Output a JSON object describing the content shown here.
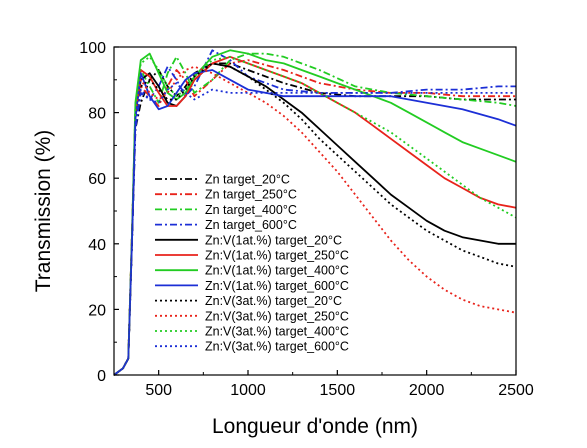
{
  "chart_data": {
    "type": "line",
    "title": "",
    "xlabel": "Longueur d'onde (nm)",
    "ylabel": "Transmission (%)",
    "xlim": [
      250,
      2500
    ],
    "ylim": [
      0,
      100
    ],
    "xticks": [
      500,
      1000,
      1500,
      2000,
      2500
    ],
    "yticks": [
      0,
      20,
      40,
      60,
      80,
      100
    ],
    "xtick_labels": [
      "500",
      "1000",
      "1500",
      "2000",
      "2500"
    ],
    "ytick_labels": [
      "0",
      "20",
      "40",
      "60",
      "80",
      "100"
    ],
    "grid": false,
    "legend_position": "center-left",
    "series": [
      {
        "name": "Zn target_20°C",
        "color": "#000000",
        "style": "dashdot",
        "x": [
          250,
          300,
          330,
          350,
          370,
          400,
          450,
          500,
          550,
          600,
          650,
          700,
          800,
          900,
          1000,
          1200,
          1400,
          1600,
          1800,
          2000,
          2200,
          2400,
          2500
        ],
        "y": [
          0,
          2,
          5,
          40,
          75,
          83,
          90,
          93,
          88,
          85,
          88,
          92,
          95,
          95,
          93,
          89,
          86,
          85,
          85,
          85,
          84,
          84,
          84
        ]
      },
      {
        "name": "Zn target_250°C",
        "color": "#e8231b",
        "style": "dashdot",
        "x": [
          250,
          300,
          330,
          350,
          370,
          400,
          450,
          500,
          550,
          600,
          650,
          700,
          800,
          900,
          1000,
          1200,
          1400,
          1600,
          1800,
          2000,
          2200,
          2400,
          2500
        ],
        "y": [
          0,
          2,
          5,
          42,
          78,
          88,
          85,
          82,
          88,
          93,
          90,
          85,
          90,
          95,
          96,
          93,
          89,
          87,
          86,
          86,
          85,
          85,
          85
        ]
      },
      {
        "name": "Zn target_400°C",
        "color": "#22cc22",
        "style": "dashdot",
        "x": [
          250,
          300,
          330,
          350,
          370,
          400,
          450,
          500,
          550,
          600,
          650,
          700,
          800,
          900,
          1000,
          1100,
          1200,
          1400,
          1600,
          1800,
          2000,
          2200,
          2400,
          2500
        ],
        "y": [
          0,
          2,
          5,
          42,
          80,
          93,
          88,
          83,
          92,
          97,
          92,
          86,
          90,
          96,
          98,
          98,
          97,
          93,
          88,
          86,
          85,
          84,
          83,
          82
        ]
      },
      {
        "name": "Zn target_600°C",
        "color": "#1c2fd6",
        "style": "dashdot",
        "x": [
          250,
          300,
          330,
          350,
          370,
          400,
          450,
          500,
          550,
          600,
          650,
          700,
          800,
          900,
          1000,
          1200,
          1400,
          1600,
          1800,
          2000,
          2200,
          2400,
          2500
        ],
        "y": [
          0,
          2,
          5,
          40,
          75,
          86,
          84,
          88,
          94,
          90,
          85,
          88,
          99,
          96,
          91,
          87,
          86,
          86,
          86,
          87,
          87,
          88,
          88
        ]
      },
      {
        "name": "Zn:V(1at.%) target_20°C",
        "color": "#000000",
        "style": "solid",
        "x": [
          250,
          300,
          330,
          350,
          370,
          400,
          450,
          500,
          550,
          600,
          650,
          700,
          800,
          900,
          1000,
          1100,
          1200,
          1300,
          1400,
          1500,
          1600,
          1700,
          1800,
          1900,
          2000,
          2100,
          2200,
          2300,
          2400,
          2500
        ],
        "y": [
          0,
          2,
          5,
          40,
          80,
          90,
          92,
          88,
          83,
          82,
          85,
          90,
          95,
          94,
          91,
          88,
          84,
          80,
          75,
          70,
          65,
          60,
          55,
          51,
          47,
          44,
          42,
          41,
          40,
          40
        ]
      },
      {
        "name": "Zn:V(1at.%) target_250°C",
        "color": "#e8231b",
        "style": "solid",
        "x": [
          250,
          300,
          330,
          350,
          370,
          400,
          450,
          500,
          550,
          600,
          650,
          700,
          800,
          900,
          1000,
          1100,
          1200,
          1300,
          1400,
          1500,
          1600,
          1700,
          1800,
          1900,
          2000,
          2100,
          2200,
          2300,
          2400,
          2500
        ],
        "y": [
          0,
          2,
          5,
          42,
          80,
          93,
          91,
          86,
          82,
          82,
          85,
          90,
          95,
          97,
          95,
          93,
          91,
          89,
          86,
          83,
          80,
          76,
          72,
          68,
          64,
          60,
          57,
          54,
          52,
          51
        ]
      },
      {
        "name": "Zn:V(1at.%) target_400°C",
        "color": "#22cc22",
        "style": "solid",
        "x": [
          250,
          300,
          330,
          350,
          370,
          400,
          450,
          500,
          550,
          600,
          650,
          700,
          800,
          900,
          1000,
          1100,
          1200,
          1300,
          1400,
          1500,
          1600,
          1700,
          1800,
          1900,
          2000,
          2100,
          2200,
          2300,
          2400,
          2500
        ],
        "y": [
          0,
          2,
          5,
          42,
          83,
          96,
          98,
          92,
          86,
          84,
          86,
          91,
          97,
          99,
          98,
          96,
          95,
          93,
          91,
          89,
          87,
          85,
          83,
          80,
          77,
          74,
          71,
          69,
          67,
          65
        ]
      },
      {
        "name": "Zn:V(1at.%) target_600°C",
        "color": "#1c2fd6",
        "style": "solid",
        "x": [
          250,
          300,
          330,
          350,
          370,
          400,
          450,
          500,
          550,
          600,
          650,
          700,
          800,
          900,
          1000,
          1100,
          1200,
          1400,
          1600,
          1800,
          2000,
          2200,
          2400,
          2500
        ],
        "y": [
          0,
          2,
          5,
          40,
          78,
          92,
          85,
          81,
          82,
          86,
          90,
          92,
          93,
          90,
          87,
          86,
          85,
          85,
          85,
          85,
          83,
          81,
          78,
          76
        ]
      },
      {
        "name": "Zn:V(3at.%) target_20°C",
        "color": "#000000",
        "style": "dotted",
        "x": [
          250,
          300,
          330,
          350,
          370,
          400,
          450,
          500,
          550,
          600,
          650,
          700,
          800,
          900,
          1000,
          1100,
          1200,
          1300,
          1400,
          1500,
          1600,
          1700,
          1800,
          1900,
          2000,
          2100,
          2200,
          2300,
          2400,
          2500
        ],
        "y": [
          0,
          2,
          5,
          40,
          78,
          88,
          90,
          87,
          84,
          84,
          87,
          91,
          95,
          94,
          91,
          87,
          83,
          78,
          72,
          67,
          62,
          57,
          52,
          48,
          44,
          41,
          38,
          36,
          34,
          33
        ]
      },
      {
        "name": "Zn:V(3at.%) target_250°C",
        "color": "#e8231b",
        "style": "dotted",
        "x": [
          250,
          300,
          330,
          350,
          370,
          400,
          450,
          500,
          550,
          600,
          650,
          700,
          800,
          900,
          1000,
          1100,
          1200,
          1300,
          1400,
          1500,
          1600,
          1700,
          1800,
          1900,
          2000,
          2100,
          2200,
          2300,
          2400,
          2500
        ],
        "y": [
          0,
          2,
          5,
          42,
          80,
          90,
          86,
          84,
          86,
          90,
          93,
          94,
          92,
          89,
          86,
          83,
          79,
          74,
          68,
          62,
          55,
          48,
          41,
          35,
          30,
          26,
          23,
          21,
          20,
          19
        ]
      },
      {
        "name": "Zn:V(3at.%) target_400°C",
        "color": "#22cc22",
        "style": "dotted",
        "x": [
          250,
          300,
          330,
          350,
          370,
          400,
          450,
          500,
          550,
          600,
          650,
          700,
          800,
          900,
          1000,
          1100,
          1200,
          1300,
          1400,
          1500,
          1600,
          1700,
          1800,
          1900,
          2000,
          2100,
          2200,
          2300,
          2400,
          2500
        ],
        "y": [
          0,
          2,
          5,
          42,
          82,
          95,
          97,
          93,
          88,
          85,
          87,
          91,
          96,
          97,
          95,
          93,
          91,
          89,
          86,
          83,
          80,
          77,
          74,
          70,
          66,
          62,
          58,
          54,
          51,
          48
        ]
      },
      {
        "name": "Zn:V(3at.%) target_600°C",
        "color": "#1c2fd6",
        "style": "dotted",
        "x": [
          250,
          300,
          330,
          350,
          370,
          400,
          450,
          500,
          550,
          600,
          650,
          700,
          800,
          900,
          1000,
          1200,
          1400,
          1600,
          1800,
          2000,
          2200,
          2400,
          2500
        ],
        "y": [
          0,
          2,
          5,
          40,
          76,
          87,
          84,
          83,
          87,
          89,
          86,
          84,
          87,
          86,
          86,
          86,
          86,
          86,
          86,
          86,
          86,
          86,
          86
        ]
      }
    ]
  }
}
